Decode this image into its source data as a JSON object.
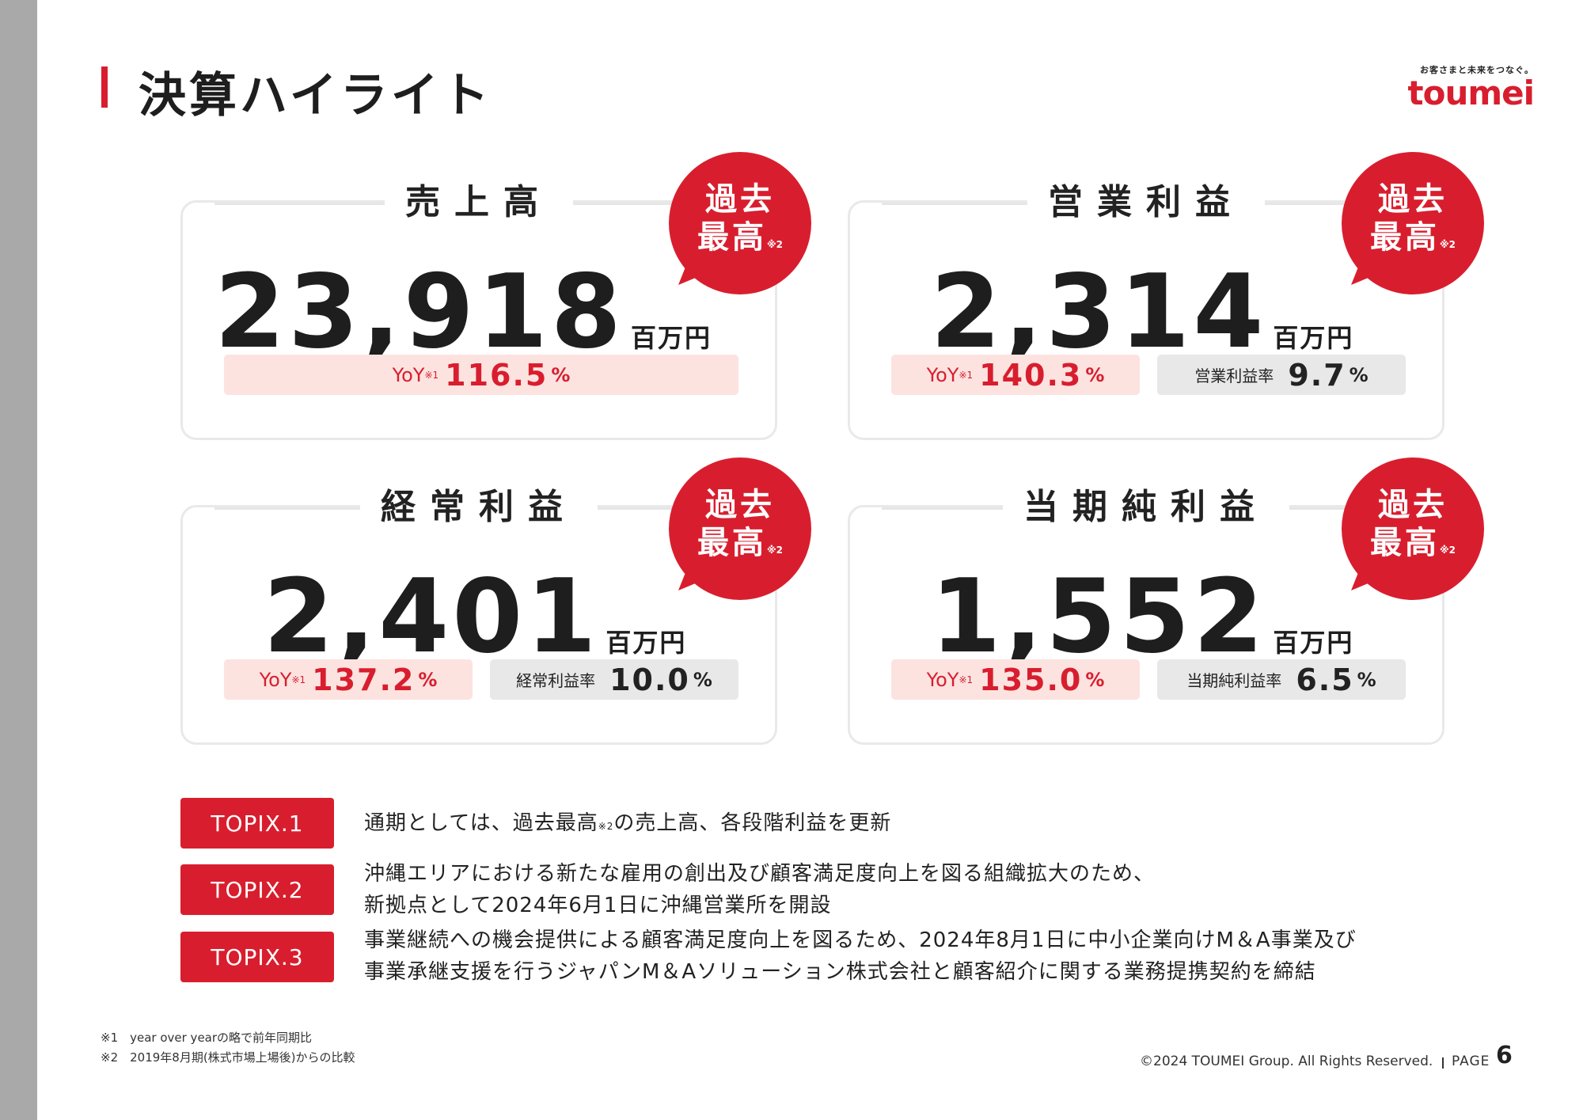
{
  "page": {
    "title": "決算ハイライト",
    "logo_tagline": "お客さまと未来をつなぐ。",
    "logo_name": "toumei",
    "copyright": "©2024 TOUMEI Group. All Rights Reserved.",
    "page_label": "PAGE",
    "page_number": "6"
  },
  "badge": {
    "line1": "過去",
    "line2": "最高",
    "note": "※2"
  },
  "cards": [
    {
      "title": "売上高",
      "value": "23,918",
      "unit": "百万円",
      "yoy_label": "YoY",
      "yoy_note": "※1",
      "yoy_value": "116.5",
      "yoy_pct": "%"
    },
    {
      "title": "営業利益",
      "value": "2,314",
      "unit": "百万円",
      "yoy_label": "YoY",
      "yoy_note": "※1",
      "yoy_value": "140.3",
      "yoy_pct": "%",
      "rate_label": "営業利益率",
      "rate_value": "9.7",
      "rate_pct": "%"
    },
    {
      "title": "経常利益",
      "value": "2,401",
      "unit": "百万円",
      "yoy_label": "YoY",
      "yoy_note": "※1",
      "yoy_value": "137.2",
      "yoy_pct": "%",
      "rate_label": "経常利益率",
      "rate_value": "10.0",
      "rate_pct": "%"
    },
    {
      "title": "当期純利益",
      "value": "1,552",
      "unit": "百万円",
      "yoy_label": "YoY",
      "yoy_note": "※1",
      "yoy_value": "135.0",
      "yoy_pct": "%",
      "rate_label": "当期純利益率",
      "rate_value": "6.5",
      "rate_pct": "%"
    }
  ],
  "topix": [
    {
      "label": "TOPIX.1",
      "text_a": "通期としては、過去最高",
      "text_note": "※2",
      "text_b": "の売上高、各段階利益を更新"
    },
    {
      "label": "TOPIX.2",
      "line1": "沖縄エリアにおける新たな雇用の創出及び顧客満足度向上を図る組織拡大のため、",
      "line2": "新拠点として2024年6月1日に沖縄営業所を開設"
    },
    {
      "label": "TOPIX.3",
      "line1": "事業継続への機会提供による顧客満足度向上を図るため、2024年8月1日に中小企業向けM＆A事業及び",
      "line2": "事業承継支援を行うジャパンM＆Aソリューション株式会社と顧客紹介に関する業務提携契約を締結"
    }
  ],
  "footnotes": [
    "※1　year over yearの略で前年同期比",
    "※2　2019年8月期(株式市場上場後)からの比較"
  ]
}
